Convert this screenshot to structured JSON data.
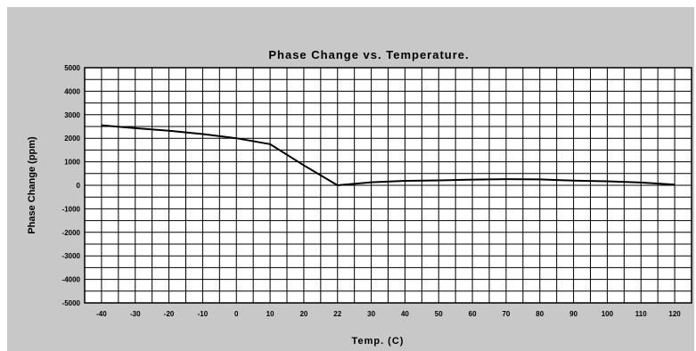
{
  "chart_data": {
    "type": "line",
    "title": "Phase Change vs. Temperature.",
    "xlabel": "Temp. (C)",
    "ylabel": "Phase Change (ppm)",
    "x_tick_labels": [
      "-40",
      "-30",
      "-20",
      "-10",
      "0",
      "10",
      "20",
      "22",
      "30",
      "40",
      "50",
      "60",
      "70",
      "80",
      "90",
      "100",
      "110",
      "120"
    ],
    "y_tick_labels": [
      "5000",
      "4000",
      "3000",
      "2000",
      "1000",
      "0",
      "-1000",
      "-2000",
      "-3000",
      "-4000",
      "-5000"
    ],
    "ylim": [
      -5000,
      5000
    ],
    "grid": true,
    "series": [
      {
        "x": [
          "-40",
          "-30",
          "-20",
          "-10",
          "0",
          "10",
          "20",
          "22",
          "30",
          "40",
          "50",
          "60",
          "70",
          "80",
          "90",
          "100",
          "110",
          "120"
        ],
        "values": [
          2550,
          2430,
          2320,
          2180,
          2000,
          1750,
          850,
          0,
          130,
          190,
          210,
          240,
          260,
          250,
          200,
          170,
          120,
          30
        ],
        "color": "#000000"
      }
    ]
  }
}
